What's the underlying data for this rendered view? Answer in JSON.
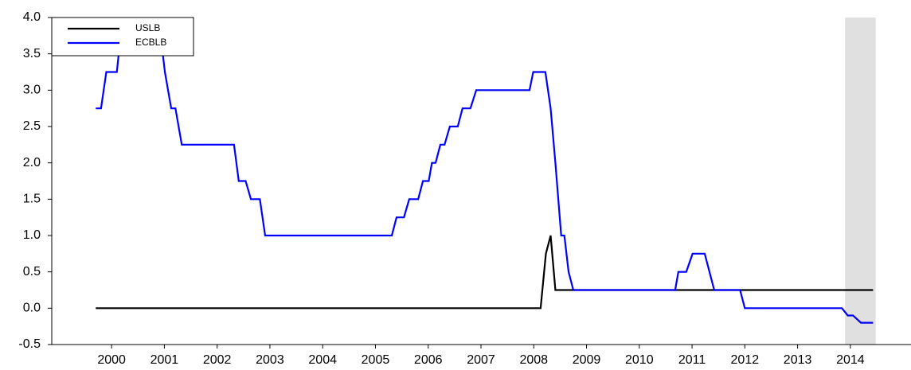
{
  "chart_data": {
    "type": "line",
    "series": [
      {
        "name": "USLB",
        "color": "#000000",
        "x": [
          2000.2,
          2008.63,
          2008.73,
          2008.82,
          2008.91,
          2014.93
        ],
        "values": [
          0,
          0,
          0.75,
          1.0,
          0.25,
          0.25
        ]
      },
      {
        "name": "ECBLB",
        "color": "#0000ff",
        "x": [
          2000.2,
          2000.3,
          2000.4,
          2000.6,
          2000.67,
          2000.75,
          2001.35,
          2001.43,
          2001.51,
          2001.63,
          2001.71,
          2001.83,
          2002.82,
          2002.91,
          2003.04,
          2003.14,
          2003.31,
          2003.41,
          2005.81,
          2005.9,
          2006.04,
          2006.14,
          2006.31,
          2006.4,
          2006.51,
          2006.57,
          2006.64,
          2006.73,
          2006.81,
          2006.91,
          2007.06,
          2007.15,
          2007.3,
          2007.41,
          2008.42,
          2008.49,
          2008.72,
          2008.82,
          2008.91,
          2009.02,
          2009.08,
          2009.16,
          2009.25,
          2011.18,
          2011.24,
          2011.39,
          2011.51,
          2011.74,
          2011.83,
          2011.92,
          2012.41,
          2012.5,
          2014.34,
          2014.45,
          2014.55,
          2014.7,
          2014.93
        ],
        "values": [
          2.75,
          2.75,
          3.25,
          3.25,
          3.75,
          4.25,
          4.25,
          3.75,
          3.25,
          2.75,
          2.75,
          2.25,
          2.25,
          1.75,
          1.75,
          1.5,
          1.5,
          1.0,
          1.0,
          1.25,
          1.25,
          1.5,
          1.5,
          1.75,
          1.75,
          2.0,
          2.0,
          2.25,
          2.25,
          2.5,
          2.5,
          2.75,
          2.75,
          3.0,
          3.0,
          3.25,
          3.25,
          2.75,
          2.0,
          1.0,
          1.0,
          0.5,
          0.25,
          0.25,
          0.5,
          0.5,
          0.75,
          0.75,
          0.5,
          0.25,
          0.25,
          0.0,
          0.0,
          -0.1,
          -0.1,
          -0.2,
          -0.2
        ]
      }
    ],
    "xlim": [
      2000,
      2015
    ],
    "ylim": [
      -0.5,
      4.0
    ],
    "yticks": [
      {
        "value": -0.5,
        "label": "-0.5"
      },
      {
        "value": 0,
        "label": "0.0"
      },
      {
        "value": 0.5,
        "label": "0.5"
      },
      {
        "value": 1,
        "label": "1.0"
      },
      {
        "value": 1.5,
        "label": "1.5"
      },
      {
        "value": 2,
        "label": "2.0"
      },
      {
        "value": 2.5,
        "label": "2.5"
      },
      {
        "value": 3,
        "label": "3.0"
      },
      {
        "value": 3.5,
        "label": "3.5"
      },
      {
        "value": 4,
        "label": "4.0"
      }
    ],
    "xticks": [
      {
        "value": 2000.5,
        "label": "2000"
      },
      {
        "value": 2001.5,
        "label": "2001"
      },
      {
        "value": 2002.5,
        "label": "2002"
      },
      {
        "value": 2003.5,
        "label": "2003"
      },
      {
        "value": 2004.5,
        "label": "2004"
      },
      {
        "value": 2005.5,
        "label": "2005"
      },
      {
        "value": 2006.5,
        "label": "2006"
      },
      {
        "value": 2007.5,
        "label": "2007"
      },
      {
        "value": 2008.5,
        "label": "2008"
      },
      {
        "value": 2009.5,
        "label": "2009"
      },
      {
        "value": 2010.5,
        "label": "2010"
      },
      {
        "value": 2011.5,
        "label": "2011"
      },
      {
        "value": 2012.5,
        "label": "2012"
      },
      {
        "value": 2013.5,
        "label": "2013"
      },
      {
        "value": 2014.5,
        "label": "2014"
      }
    ],
    "shaded_xrange": [
      2014.4,
      2014.98
    ],
    "shade_color": "#e0e0e0",
    "legend": "upper left"
  }
}
